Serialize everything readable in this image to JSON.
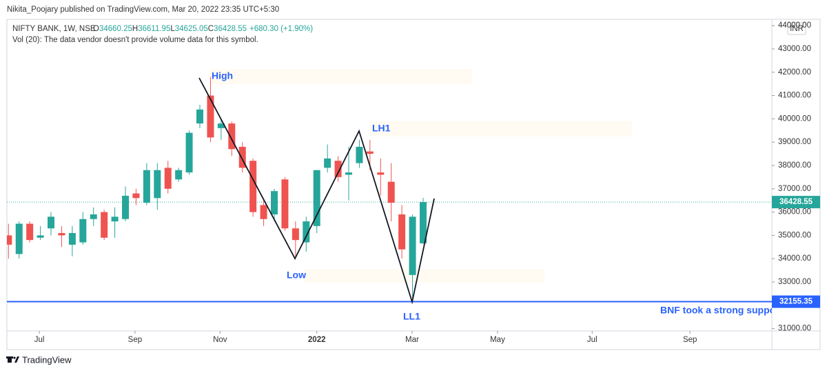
{
  "header": {
    "publisher": "Nikita_Poojary published on TradingView.com, Mar 20, 2022 23:35 UTC+5:30",
    "ohlc": [
      {
        "label": "O",
        "value": "34660.25"
      },
      {
        "label": "H",
        "value": "36611.95"
      },
      {
        "label": "L",
        "value": "34625.05"
      },
      {
        "label": "C",
        "value": "36428.55"
      }
    ],
    "change": "+680.30 (+1.90%)",
    "volume_note": "Vol (20): The data vendor doesn't provide volume data for this symbol.",
    "currency": "INR"
  },
  "footer": {
    "brand": "TradingView"
  },
  "chart_data": {
    "type": "candlestick",
    "title": "NIFTY BANK, 1W, NSE",
    "categories": [
      null,
      null,
      null,
      null,
      null,
      null,
      null,
      null,
      null,
      null,
      null,
      null,
      null,
      null,
      null,
      null,
      null,
      null,
      null,
      null,
      null,
      null,
      null,
      null,
      null,
      null,
      null,
      null,
      null,
      null,
      null,
      null,
      null,
      null,
      null,
      null,
      null,
      null,
      null,
      null
    ],
    "open": [
      35000,
      34200,
      35500,
      34900,
      35300,
      35100,
      34600,
      34700,
      35700,
      36000,
      35600,
      35700,
      36800,
      36400,
      36600,
      37900,
      37400,
      37700,
      39800,
      41000,
      39600,
      39800,
      38800,
      38200,
      36300,
      35900,
      37400,
      35300,
      34700,
      35400,
      37900,
      38200,
      37600,
      38100,
      38600,
      37700,
      37300,
      35900,
      33300,
      34660.25
    ],
    "high": [
      35500,
      35600,
      35600,
      35400,
      36000,
      35400,
      35400,
      36000,
      36200,
      36100,
      36200,
      37100,
      37000,
      38100,
      38100,
      38200,
      37900,
      39500,
      40600,
      41800,
      40000,
      39900,
      39000,
      38300,
      36500,
      37000,
      37500,
      35600,
      35800,
      37800,
      38900,
      38400,
      38800,
      39100,
      39100,
      38300,
      38100,
      36300,
      35900,
      36611.95
    ],
    "low": [
      34000,
      34000,
      34700,
      34800,
      35000,
      34500,
      34100,
      34600,
      35400,
      34800,
      34900,
      35600,
      36300,
      36300,
      36100,
      36800,
      37300,
      37600,
      39600,
      39000,
      39100,
      38400,
      37700,
      35800,
      35400,
      35600,
      35200,
      34100,
      34300,
      35100,
      37700,
      37300,
      36500,
      37900,
      37800,
      36700,
      35600,
      34000,
      32200,
      34625.05
    ],
    "close": [
      34600,
      35500,
      34800,
      35000,
      35800,
      35000,
      35100,
      35700,
      35900,
      34900,
      35800,
      36700,
      36600,
      37800,
      37800,
      37000,
      37800,
      39400,
      40400,
      39200,
      39800,
      38700,
      37900,
      36000,
      35700,
      36900,
      35300,
      34800,
      35600,
      37800,
      38300,
      37500,
      37700,
      38800,
      38500,
      37600,
      36400,
      34400,
      35800,
      36428.55
    ],
    "up_color": "#26a69a",
    "down_color": "#ef5350",
    "ylim": [
      30900,
      44270
    ],
    "yticks": [
      {
        "value": 31000,
        "label": "31000.00"
      },
      {
        "value": 32000,
        "label": "32000.00"
      },
      {
        "value": 33000,
        "label": "33000.00"
      },
      {
        "value": 34000,
        "label": "34000.00"
      },
      {
        "value": 35000,
        "label": "35000.00"
      },
      {
        "value": 36000,
        "label": "36000.00"
      },
      {
        "value": 37000,
        "label": "37000.00"
      },
      {
        "value": 38000,
        "label": "38000.00"
      },
      {
        "value": 39000,
        "label": "39000.00"
      },
      {
        "value": 40000,
        "label": "40000.00"
      },
      {
        "value": 41000,
        "label": "41000.00"
      },
      {
        "value": 42000,
        "label": "42000.00"
      },
      {
        "value": 43000,
        "label": "43000.00"
      },
      {
        "value": 44000,
        "label": "44000.00"
      }
    ],
    "xlim": [
      -0.15,
      71.8
    ],
    "xticks": [
      {
        "value": 2.9,
        "label": "Jul"
      },
      {
        "value": 11.9,
        "label": "Sep"
      },
      {
        "value": 19.9,
        "label": "Nov"
      },
      {
        "value": 29,
        "label": "2022"
      },
      {
        "value": 37.96,
        "label": "Mar"
      },
      {
        "value": 46,
        "label": "May"
      },
      {
        "value": 54.9,
        "label": "Jul"
      },
      {
        "value": 64.1,
        "label": "Sep"
      }
    ],
    "last_price": 36428.55,
    "support_level": 32155.35,
    "support_color": "#2962ff",
    "annotations": [
      "High",
      "Low",
      "LH1",
      "LL1",
      "BNF took a strong support"
    ]
  }
}
